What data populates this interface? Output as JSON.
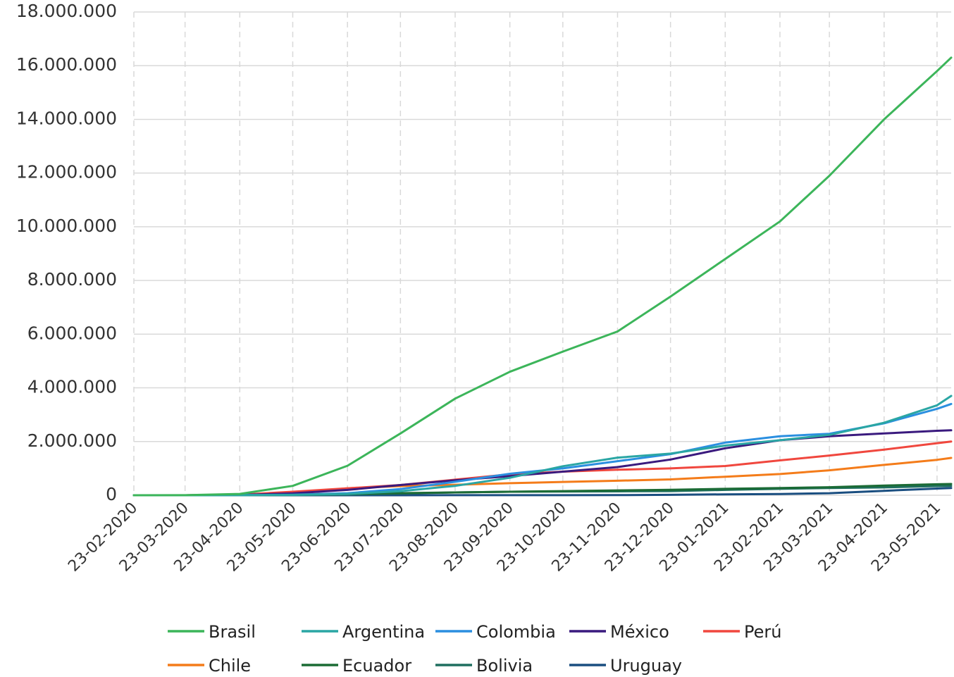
{
  "chart_data": {
    "type": "line",
    "title": "",
    "xlabel": "",
    "ylabel": "",
    "ylim": [
      0,
      18000000
    ],
    "y_ticks": [
      "0",
      "2.000.000",
      "4.000.000",
      "6.000.000",
      "8.000.000",
      "10.000.000",
      "12.000.000",
      "14.000.000",
      "16.000.000",
      "18.000.000"
    ],
    "y_tick_values": [
      0,
      2000000,
      4000000,
      6000000,
      8000000,
      10000000,
      12000000,
      14000000,
      16000000,
      18000000
    ],
    "x_ticks": [
      "23-02-2020",
      "23-03-2020",
      "23-04-2020",
      "23-05-2020",
      "23-06-2020",
      "23-07-2020",
      "23-08-2020",
      "23-09-2020",
      "23-10-2020",
      "23-11-2020",
      "23-12-2020",
      "23-01-2021",
      "23-02-2021",
      "23-03-2021",
      "23-04-2021",
      "23-05-2021"
    ],
    "x_range": [
      "23-02-2020",
      "31-05-2021"
    ],
    "grid": "horizontal solid, vertical dashed",
    "legend_position": "bottom",
    "x": [
      "23-02-2020",
      "23-03-2020",
      "23-04-2020",
      "23-05-2020",
      "23-06-2020",
      "23-07-2020",
      "23-08-2020",
      "23-09-2020",
      "23-10-2020",
      "23-11-2020",
      "23-12-2020",
      "23-01-2021",
      "23-02-2021",
      "23-03-2021",
      "23-04-2021",
      "23-05-2021",
      "31-05-2021"
    ],
    "series": [
      {
        "name": "Brasil",
        "color": "#3cb55a",
        "values": [
          0,
          2000,
          50000,
          350000,
          1100000,
          2300000,
          3600000,
          4600000,
          5350000,
          6100000,
          7400000,
          8800000,
          10200000,
          11900000,
          14000000,
          15800000,
          16300000
        ]
      },
      {
        "name": "Argentina",
        "color": "#2aa6a4",
        "values": [
          0,
          300,
          3500,
          12000,
          50000,
          150000,
          350000,
          650000,
          1080000,
          1400000,
          1550000,
          1850000,
          2050000,
          2250000,
          2700000,
          3350000,
          3700000
        ]
      },
      {
        "name": "Colombia",
        "color": "#2b8fe0",
        "values": [
          0,
          300,
          4500,
          20000,
          75000,
          230000,
          500000,
          800000,
          1000000,
          1270000,
          1530000,
          1960000,
          2200000,
          2290000,
          2680000,
          3220000,
          3400000
        ]
      },
      {
        "name": "México",
        "color": "#3a1a7e",
        "values": [
          0,
          400,
          10000,
          70000,
          200000,
          380000,
          560000,
          710000,
          880000,
          1050000,
          1330000,
          1750000,
          2050000,
          2200000,
          2300000,
          2400000,
          2420000
        ]
      },
      {
        "name": "Perú",
        "color": "#f0473e",
        "values": [
          0,
          400,
          20000,
          130000,
          260000,
          380000,
          580000,
          780000,
          880000,
          950000,
          1000000,
          1090000,
          1300000,
          1480000,
          1700000,
          1940000,
          2000000
        ]
      },
      {
        "name": "Chile",
        "color": "#f47c1a",
        "values": [
          0,
          800,
          12000,
          70000,
          260000,
          340000,
          390000,
          450000,
          495000,
          540000,
          590000,
          690000,
          790000,
          930000,
          1130000,
          1320000,
          1390000
        ]
      },
      {
        "name": "Ecuador",
        "color": "#1b6b35",
        "values": [
          0,
          1000,
          10000,
          36000,
          52000,
          78000,
          105000,
          132000,
          155000,
          180000,
          205000,
          240000,
          270000,
          300000,
          360000,
          410000,
          420000
        ]
      },
      {
        "name": "Bolivia",
        "color": "#1f6f5f",
        "values": [
          0,
          0,
          700,
          5200,
          26000,
          65000,
          105000,
          130000,
          140000,
          145000,
          155000,
          200000,
          240000,
          270000,
          290000,
          340000,
          350000
        ]
      },
      {
        "name": "Uruguay",
        "color": "#1a4e80",
        "values": [
          0,
          100,
          550,
          750,
          880,
          1200,
          1450,
          1900,
          2500,
          4800,
          15000,
          35000,
          48000,
          75000,
          165000,
          250000,
          270000
        ]
      }
    ]
  }
}
